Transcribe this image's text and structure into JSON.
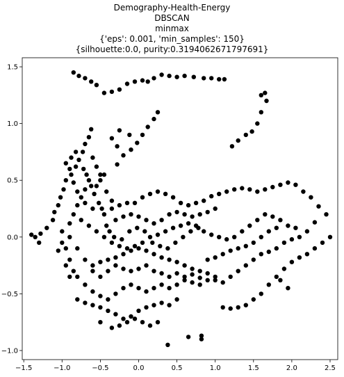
{
  "chart_data": {
    "type": "scatter",
    "title_lines": [
      "Demography-Health-Energy",
      "DBSCAN",
      "minmax",
      "{'eps': 0.001, 'min_samples': 150}",
      "{silhouette:0.0, purity:0.3194062671797691}"
    ],
    "xlabel": "",
    "ylabel": "",
    "xlim": [
      -1.52,
      2.6
    ],
    "ylim": [
      -1.08,
      1.58
    ],
    "xticks": [
      -1.5,
      -1.0,
      -0.5,
      0.0,
      0.5,
      1.0,
      1.5,
      2.0,
      2.5
    ],
    "xtick_labels": [
      "−1.5",
      "−1.0",
      "−0.5",
      "0.0",
      "0.5",
      "1.0",
      "1.5",
      "2.0",
      "2.5"
    ],
    "yticks": [
      -1.0,
      -0.5,
      0.0,
      0.5,
      1.0,
      1.5
    ],
    "ytick_labels": [
      "−1.0",
      "−0.5",
      "0.0",
      "0.5",
      "1.0",
      "1.5"
    ],
    "marker_color": "#000000",
    "series": [
      {
        "points": [
          [
            -0.85,
            1.45
          ],
          [
            -0.78,
            1.42
          ],
          [
            -0.7,
            1.4
          ],
          [
            -0.62,
            1.37
          ],
          [
            -0.55,
            1.34
          ],
          [
            -0.45,
            1.27
          ],
          [
            -0.35,
            1.28
          ],
          [
            -0.25,
            1.3
          ],
          [
            -0.15,
            1.35
          ],
          [
            -0.05,
            1.37
          ],
          [
            0.05,
            1.38
          ],
          [
            0.12,
            1.37
          ],
          [
            0.2,
            1.4
          ],
          [
            0.3,
            1.43
          ],
          [
            0.4,
            1.42
          ],
          [
            0.5,
            1.41
          ],
          [
            0.6,
            1.42
          ],
          [
            0.72,
            1.41
          ],
          [
            0.85,
            1.4
          ],
          [
            0.95,
            1.4
          ],
          [
            1.05,
            1.39
          ],
          [
            1.12,
            1.39
          ],
          [
            1.6,
            1.25
          ],
          [
            1.65,
            1.27
          ],
          [
            1.67,
            1.2
          ],
          [
            1.6,
            1.1
          ],
          [
            1.55,
            1.0
          ],
          [
            1.48,
            0.93
          ],
          [
            1.4,
            0.9
          ],
          [
            1.3,
            0.85
          ],
          [
            1.22,
            0.8
          ],
          [
            0.25,
            1.1
          ],
          [
            0.2,
            1.04
          ],
          [
            0.12,
            0.97
          ],
          [
            0.05,
            0.9
          ],
          [
            -0.02,
            0.83
          ],
          [
            -0.1,
            0.77
          ],
          [
            -0.2,
            0.72
          ],
          [
            -0.28,
            0.64
          ],
          [
            -0.12,
            0.9
          ],
          [
            -0.25,
            0.94
          ],
          [
            -0.35,
            0.87
          ],
          [
            -0.28,
            0.8
          ],
          [
            -0.62,
            0.95
          ],
          [
            -0.65,
            0.88
          ],
          [
            -0.7,
            0.82
          ],
          [
            -0.73,
            0.75
          ],
          [
            -0.78,
            0.68
          ],
          [
            -0.82,
            0.62
          ],
          [
            -0.88,
            0.55
          ],
          [
            -0.95,
            0.5
          ],
          [
            -0.98,
            0.42
          ],
          [
            -1.02,
            0.35
          ],
          [
            -1.05,
            0.28
          ],
          [
            -1.1,
            0.22
          ],
          [
            -1.12,
            0.15
          ],
          [
            -1.2,
            0.08
          ],
          [
            -1.28,
            0.03
          ],
          [
            -1.35,
            0.0
          ],
          [
            -1.4,
            0.02
          ],
          [
            -1.3,
            -0.05
          ],
          [
            -0.55,
            0.45
          ],
          [
            -0.5,
            0.5
          ],
          [
            -0.45,
            0.55
          ],
          [
            -0.42,
            0.4
          ],
          [
            -0.35,
            0.32
          ],
          [
            -0.25,
            0.28
          ],
          [
            -0.15,
            0.3
          ],
          [
            -0.05,
            0.3
          ],
          [
            0.05,
            0.35
          ],
          [
            0.15,
            0.38
          ],
          [
            0.25,
            0.4
          ],
          [
            0.35,
            0.38
          ],
          [
            0.45,
            0.35
          ],
          [
            0.55,
            0.3
          ],
          [
            0.65,
            0.28
          ],
          [
            0.75,
            0.3
          ],
          [
            0.85,
            0.32
          ],
          [
            0.95,
            0.36
          ],
          [
            1.05,
            0.38
          ],
          [
            1.15,
            0.4
          ],
          [
            1.25,
            0.42
          ],
          [
            1.35,
            0.43
          ],
          [
            1.45,
            0.42
          ],
          [
            1.55,
            0.4
          ],
          [
            1.65,
            0.42
          ],
          [
            1.75,
            0.44
          ],
          [
            1.85,
            0.46
          ],
          [
            1.95,
            0.48
          ],
          [
            2.05,
            0.46
          ],
          [
            2.15,
            0.4
          ],
          [
            2.25,
            0.35
          ],
          [
            2.35,
            0.27
          ],
          [
            2.45,
            0.2
          ],
          [
            2.3,
            0.13
          ],
          [
            2.2,
            0.05
          ],
          [
            2.1,
            0.0
          ],
          [
            2.0,
            -0.02
          ],
          [
            1.9,
            -0.05
          ],
          [
            1.8,
            -0.1
          ],
          [
            1.7,
            -0.13
          ],
          [
            1.6,
            -0.15
          ],
          [
            1.5,
            -0.2
          ],
          [
            1.4,
            -0.25
          ],
          [
            1.3,
            -0.3
          ],
          [
            1.2,
            -0.35
          ],
          [
            1.1,
            -0.4
          ],
          [
            1.0,
            -0.38
          ],
          [
            0.9,
            -0.32
          ],
          [
            0.8,
            -0.3
          ],
          [
            0.7,
            -0.28
          ],
          [
            0.6,
            -0.25
          ],
          [
            0.5,
            -0.22
          ],
          [
            0.4,
            -0.2
          ],
          [
            0.3,
            -0.18
          ],
          [
            0.2,
            -0.15
          ],
          [
            0.1,
            -0.12
          ],
          [
            0.0,
            -0.1
          ],
          [
            -0.1,
            -0.12
          ],
          [
            -0.2,
            -0.15
          ],
          [
            -0.3,
            -0.18
          ],
          [
            -0.4,
            -0.2
          ],
          [
            -0.5,
            -0.22
          ],
          [
            -0.6,
            -0.25
          ],
          [
            -0.7,
            -0.2
          ],
          [
            -0.8,
            -0.1
          ],
          [
            -0.9,
            0.0
          ],
          [
            -1.0,
            0.05
          ],
          [
            -0.95,
            -0.1
          ],
          [
            -0.9,
            -0.2
          ],
          [
            -0.85,
            -0.3
          ],
          [
            -0.8,
            -0.35
          ],
          [
            -0.7,
            -0.42
          ],
          [
            -0.6,
            -0.48
          ],
          [
            -0.5,
            -0.52
          ],
          [
            -0.4,
            -0.55
          ],
          [
            -0.3,
            -0.5
          ],
          [
            -0.2,
            -0.45
          ],
          [
            -0.1,
            -0.42
          ],
          [
            0.0,
            -0.45
          ],
          [
            0.1,
            -0.48
          ],
          [
            0.2,
            -0.45
          ],
          [
            0.3,
            -0.42
          ],
          [
            0.4,
            -0.45
          ],
          [
            0.5,
            -0.42
          ],
          [
            0.6,
            -0.38
          ],
          [
            0.7,
            -0.4
          ],
          [
            0.8,
            -0.42
          ],
          [
            0.9,
            -0.38
          ],
          [
            1.0,
            -0.35
          ],
          [
            -0.8,
            -0.55
          ],
          [
            -0.7,
            -0.58
          ],
          [
            -0.6,
            -0.6
          ],
          [
            -0.5,
            -0.62
          ],
          [
            -0.4,
            -0.65
          ],
          [
            -0.3,
            -0.68
          ],
          [
            -0.2,
            -0.72
          ],
          [
            -0.1,
            -0.7
          ],
          [
            0.0,
            -0.65
          ],
          [
            0.1,
            -0.62
          ],
          [
            0.2,
            -0.6
          ],
          [
            0.3,
            -0.58
          ],
          [
            0.4,
            -0.6
          ],
          [
            0.5,
            -0.55
          ],
          [
            -0.5,
            -0.75
          ],
          [
            -0.35,
            -0.8
          ],
          [
            -0.25,
            -0.78
          ],
          [
            -0.15,
            -0.75
          ],
          [
            -0.05,
            -0.72
          ],
          [
            0.05,
            -0.75
          ],
          [
            0.15,
            -0.78
          ],
          [
            0.25,
            -0.75
          ],
          [
            0.38,
            -0.95
          ],
          [
            0.65,
            -0.88
          ],
          [
            0.82,
            -0.87
          ],
          [
            0.82,
            -0.9
          ],
          [
            1.1,
            -0.62
          ],
          [
            1.2,
            -0.63
          ],
          [
            1.3,
            -0.62
          ],
          [
            1.4,
            -0.6
          ],
          [
            1.5,
            -0.55
          ],
          [
            1.6,
            -0.5
          ],
          [
            1.7,
            -0.42
          ],
          [
            1.8,
            -0.35
          ],
          [
            1.9,
            -0.28
          ],
          [
            2.0,
            -0.22
          ],
          [
            2.1,
            -0.18
          ],
          [
            2.2,
            -0.15
          ],
          [
            2.3,
            -0.1
          ],
          [
            2.4,
            -0.05
          ],
          [
            2.5,
            0.0
          ],
          [
            1.95,
            -0.45
          ],
          [
            1.85,
            -0.38
          ],
          [
            -0.6,
            0.7
          ],
          [
            -0.55,
            0.62
          ],
          [
            -0.5,
            0.55
          ],
          [
            -0.65,
            0.5
          ],
          [
            -0.7,
            0.42
          ],
          [
            -0.75,
            0.35
          ],
          [
            -0.8,
            0.28
          ],
          [
            -0.85,
            0.2
          ],
          [
            -0.9,
            0.12
          ],
          [
            -0.75,
            0.15
          ],
          [
            -0.65,
            0.1
          ],
          [
            -0.55,
            0.05
          ],
          [
            -0.45,
            0.0
          ],
          [
            -0.35,
            -0.05
          ],
          [
            -0.25,
            -0.08
          ],
          [
            -0.15,
            -0.1
          ],
          [
            -0.05,
            -0.08
          ],
          [
            0.05,
            -0.05
          ],
          [
            0.15,
            0.0
          ],
          [
            0.25,
            0.02
          ],
          [
            0.35,
            0.05
          ],
          [
            0.45,
            0.08
          ],
          [
            0.55,
            0.1
          ],
          [
            0.65,
            0.12
          ],
          [
            0.75,
            0.1
          ],
          [
            0.85,
            0.05
          ],
          [
            0.95,
            0.02
          ],
          [
            1.05,
            0.0
          ],
          [
            1.15,
            -0.02
          ],
          [
            1.25,
            0.0
          ],
          [
            1.35,
            0.05
          ],
          [
            1.45,
            0.1
          ],
          [
            1.55,
            0.15
          ],
          [
            1.65,
            0.2
          ],
          [
            1.75,
            0.18
          ],
          [
            1.85,
            0.15
          ],
          [
            1.95,
            0.1
          ],
          [
            2.05,
            0.08
          ],
          [
            -0.3,
            0.15
          ],
          [
            -0.2,
            0.18
          ],
          [
            -0.1,
            0.2
          ],
          [
            0.0,
            0.18
          ],
          [
            0.1,
            0.15
          ],
          [
            0.2,
            0.12
          ],
          [
            0.3,
            0.15
          ],
          [
            0.4,
            0.2
          ],
          [
            0.5,
            0.22
          ],
          [
            0.6,
            0.2
          ],
          [
            0.7,
            0.18
          ],
          [
            0.8,
            0.2
          ],
          [
            0.9,
            0.22
          ],
          [
            1.0,
            0.25
          ],
          [
            -1.0,
            -0.05
          ],
          [
            -1.05,
            -0.12
          ],
          [
            -0.95,
            -0.25
          ],
          [
            -0.9,
            -0.35
          ],
          [
            -0.6,
            -0.3
          ],
          [
            -0.5,
            -0.35
          ],
          [
            -0.4,
            -0.3
          ],
          [
            -0.3,
            -0.25
          ],
          [
            -0.2,
            -0.28
          ],
          [
            -0.1,
            -0.3
          ],
          [
            0.0,
            -0.28
          ],
          [
            0.1,
            -0.25
          ],
          [
            0.2,
            -0.3
          ],
          [
            0.3,
            -0.32
          ],
          [
            0.4,
            -0.35
          ],
          [
            0.5,
            -0.32
          ],
          [
            0.6,
            -0.35
          ],
          [
            0.7,
            -0.33
          ],
          [
            0.8,
            -0.36
          ],
          [
            0.9,
            -0.2
          ],
          [
            1.0,
            -0.18
          ],
          [
            1.1,
            -0.15
          ],
          [
            1.2,
            -0.12
          ],
          [
            1.3,
            -0.1
          ],
          [
            1.4,
            -0.08
          ],
          [
            1.5,
            -0.05
          ],
          [
            1.6,
            0.0
          ],
          [
            1.7,
            0.05
          ],
          [
            1.8,
            0.08
          ],
          [
            -0.45,
            0.2
          ],
          [
            -0.35,
            0.25
          ],
          [
            -0.6,
            0.25
          ],
          [
            -0.7,
            0.3
          ],
          [
            -0.8,
            0.4
          ],
          [
            -0.85,
            0.48
          ],
          [
            -0.9,
            0.6
          ],
          [
            -0.95,
            0.65
          ],
          [
            -0.88,
            0.7
          ],
          [
            -0.82,
            0.75
          ],
          [
            -0.72,
            0.6
          ],
          [
            -0.68,
            0.55
          ],
          [
            -0.62,
            0.45
          ],
          [
            -0.58,
            0.38
          ],
          [
            -0.52,
            0.3
          ],
          [
            -0.48,
            0.25
          ],
          [
            -0.42,
            0.1
          ],
          [
            -0.38,
            0.05
          ],
          [
            -0.32,
            -0.0
          ],
          [
            -0.22,
            -0.02
          ],
          [
            -0.12,
            0.05
          ],
          [
            -0.02,
            0.08
          ],
          [
            0.08,
            0.05
          ],
          [
            0.18,
            -0.05
          ],
          [
            0.28,
            -0.08
          ],
          [
            0.38,
            -0.1
          ],
          [
            0.48,
            -0.05
          ],
          [
            0.58,
            0.0
          ],
          [
            0.68,
            0.05
          ],
          [
            0.78,
            0.08
          ]
        ]
      }
    ]
  }
}
